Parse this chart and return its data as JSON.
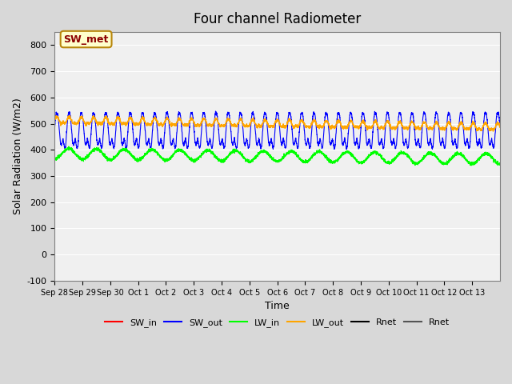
{
  "title": "Four channel Radiometer",
  "xlabel": "Time",
  "ylabel": "Solar Radiation (W/m2)",
  "ylim": [
    -100,
    850
  ],
  "yticks": [
    -100,
    0,
    100,
    200,
    300,
    400,
    500,
    600,
    700,
    800
  ],
  "annotation": "SW_met",
  "fig_bg_color": "#d8d8d8",
  "plot_bg_color": "#f0f0f0",
  "colors": {
    "SW_in": "#ff0000",
    "SW_out": "#0000ff",
    "LW_in": "#00ff00",
    "LW_out": "#ffa500",
    "Rnet_black": "#000000",
    "Rnet_dark": "#555555"
  },
  "n_days": 16,
  "x_tick_labels": [
    "Sep 28",
    "Sep 29",
    "Sep 30",
    "Oct 1",
    "Oct 2",
    "Oct 3",
    "Oct 4",
    "Oct 5",
    "Oct 6",
    "Oct 7",
    "Oct 8",
    "Oct 9",
    "Oct 10",
    "Oct 11",
    "Oct 12",
    "Oct 13"
  ],
  "legend_labels": [
    "SW_in",
    "SW_out",
    "LW_in",
    "LW_out",
    "Rnet",
    "Rnet"
  ],
  "legend_colors": [
    "#ff0000",
    "#0000ff",
    "#00ff00",
    "#ffa500",
    "#000000",
    "#555555"
  ]
}
